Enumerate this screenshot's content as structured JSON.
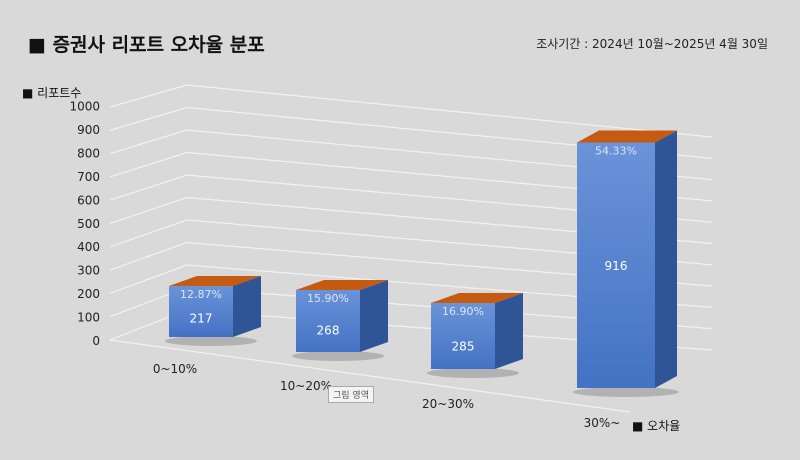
{
  "header": {
    "title": "■ 증권사 리포트 오차율 분포",
    "period": "조사기간 : 2024년 10월~2025년 4월 30일"
  },
  "tooltip": "그림 영역",
  "chart_data": {
    "type": "bar",
    "categories": [
      "0~10%",
      "10~20%",
      "20~30%",
      "30%~"
    ],
    "values": [
      217,
      268,
      285,
      916
    ],
    "data_labels": [
      "217",
      "268",
      "285",
      "916"
    ],
    "top_labels": [
      "12.87%",
      "15.90%",
      "16.90%",
      "54.33%"
    ],
    "ylabel": "■ 리포트수",
    "xlabel": "■ 오차율",
    "ylim": [
      0,
      1000
    ],
    "yticks": [
      0,
      100,
      200,
      300,
      400,
      500,
      600,
      700,
      800,
      900,
      1000
    ],
    "grid": true,
    "colors": {
      "front": "#4472c4",
      "side": "#2f5597",
      "top": "#c55a11"
    }
  }
}
